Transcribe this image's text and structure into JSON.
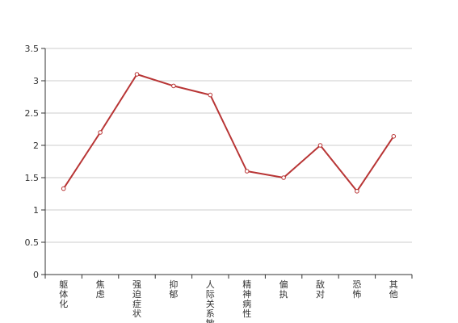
{
  "chart_data": {
    "type": "line",
    "title": "",
    "xlabel": "",
    "ylabel": "",
    "categories": [
      "躯体化",
      "焦虑",
      "强迫症状",
      "抑郁",
      "人际关系敏感",
      "精神病性",
      "偏执",
      "敌对",
      "恐怖",
      "其他"
    ],
    "series": [
      {
        "values": [
          1.33,
          2.2,
          3.1,
          2.92,
          2.78,
          1.6,
          1.5,
          2.0,
          1.29,
          2.14
        ]
      }
    ],
    "ylim": [
      0,
      3.5
    ],
    "yticks": [
      "0",
      "0.5",
      "1",
      "1.5",
      "2",
      "2.5",
      "3",
      "3.5"
    ],
    "grid": true,
    "colors": {
      "line": "#b83535",
      "grid": "#cccccc",
      "axis": "#333333"
    }
  }
}
